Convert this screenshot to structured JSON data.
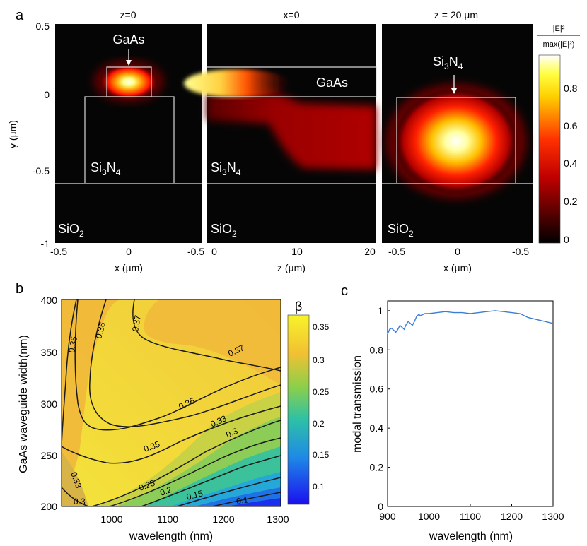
{
  "panel_labels": {
    "a": "a",
    "b": "b",
    "c": "c"
  },
  "panel_a": {
    "plots": [
      {
        "title": "z=0",
        "xlabel": "x (µm)",
        "xticks": [
          "-0.5",
          "0",
          "-0.5"
        ],
        "labels": {
          "top": "GaAs",
          "mid_main": "Si",
          "mid_sub": "3",
          "mid_tail": "N",
          "mid_sub2": "4",
          "bottom_main": "SiO",
          "bottom_sub": "2"
        }
      },
      {
        "title": "x=0",
        "xlabel": "z (µm)",
        "xticks": [
          "0",
          "10",
          "20"
        ],
        "labels": {
          "top": "GaAs",
          "mid_main": "Si",
          "mid_sub": "3",
          "mid_tail": "N",
          "mid_sub2": "4",
          "bottom_main": "SiO",
          "bottom_sub": "2"
        }
      },
      {
        "title": "z = 20 µm",
        "xlabel": "x (µm)",
        "xticks": [
          "-0.5",
          "0",
          "-0.5"
        ],
        "labels": {
          "top_main": "Si",
          "top_sub": "3",
          "top_tail": "N",
          "top_sub2": "4",
          "bottom_main": "SiO",
          "bottom_sub": "2"
        }
      }
    ],
    "ylabel": "y (µm)",
    "yticks": [
      "0.5",
      "0",
      "-0.5",
      "-1"
    ],
    "colorbar": {
      "title_num": "|E|²",
      "title_den": "max(|E|²)",
      "ticks": [
        "0.8",
        "0.6",
        "0.4",
        "0.2",
        "0"
      ],
      "colors": [
        "#000000",
        "#ff0000",
        "#ffff00",
        "#ffffff"
      ]
    }
  },
  "panel_b": {
    "xlabel": "wavelength (nm)",
    "ylabel": "GaAs waveguide width(nm)",
    "xticks": [
      "1000",
      "1100",
      "1200",
      "1300"
    ],
    "yticks": [
      "400",
      "350",
      "300",
      "250",
      "200"
    ],
    "contour_labels": [
      "0.35",
      "0.36",
      "0.37",
      "0.37",
      "0.36",
      "0.35",
      "0.33",
      "0.3",
      "0.33",
      "0.3",
      "0.25",
      "0.2",
      "0.15",
      "0.1"
    ],
    "colorbar": {
      "title": "β",
      "ticks": [
        "0.35",
        "0.3",
        "0.25",
        "0.2",
        "0.15",
        "0.1"
      ],
      "colors": [
        "#0a1ef0",
        "#1fa8e8",
        "#3cc28c",
        "#b4d23a",
        "#f2c230",
        "#f8ee2a"
      ]
    }
  },
  "chart_data": [
    {
      "type": "heatmap",
      "xlabel": "wavelength (nm)",
      "ylabel": "GaAs waveguide width(nm)",
      "xlim": [
        910,
        1300
      ],
      "ylim": [
        200,
        400
      ],
      "zlabel": "β",
      "zlim": [
        0.08,
        0.37
      ],
      "contour_levels": [
        0.1,
        0.15,
        0.2,
        0.25,
        0.3,
        0.33,
        0.35,
        0.36,
        0.37
      ]
    },
    {
      "type": "line",
      "xlabel": "wavelength (nm)",
      "ylabel": "modal transmission",
      "xlim": [
        900,
        1300
      ],
      "ylim": [
        0,
        1.05
      ],
      "xticks": [
        "900",
        "1000",
        "1100",
        "1200",
        "1300"
      ],
      "yticks": [
        "1",
        "0.8",
        "0.6",
        "0.4",
        "0.2",
        "0"
      ],
      "color": "#3a7fd5",
      "x": [
        900,
        905,
        910,
        915,
        920,
        925,
        930,
        935,
        940,
        945,
        950,
        955,
        960,
        965,
        970,
        975,
        980,
        990,
        1000,
        1020,
        1040,
        1060,
        1080,
        1100,
        1120,
        1140,
        1160,
        1180,
        1200,
        1220,
        1240,
        1260,
        1280,
        1300
      ],
      "y": [
        0.88,
        0.905,
        0.91,
        0.9,
        0.89,
        0.905,
        0.925,
        0.915,
        0.905,
        0.93,
        0.945,
        0.935,
        0.925,
        0.945,
        0.97,
        0.98,
        0.975,
        0.985,
        0.985,
        0.99,
        0.995,
        0.99,
        0.99,
        0.985,
        0.99,
        0.995,
        1.0,
        0.995,
        0.99,
        0.985,
        0.965,
        0.955,
        0.945,
        0.935
      ]
    }
  ]
}
